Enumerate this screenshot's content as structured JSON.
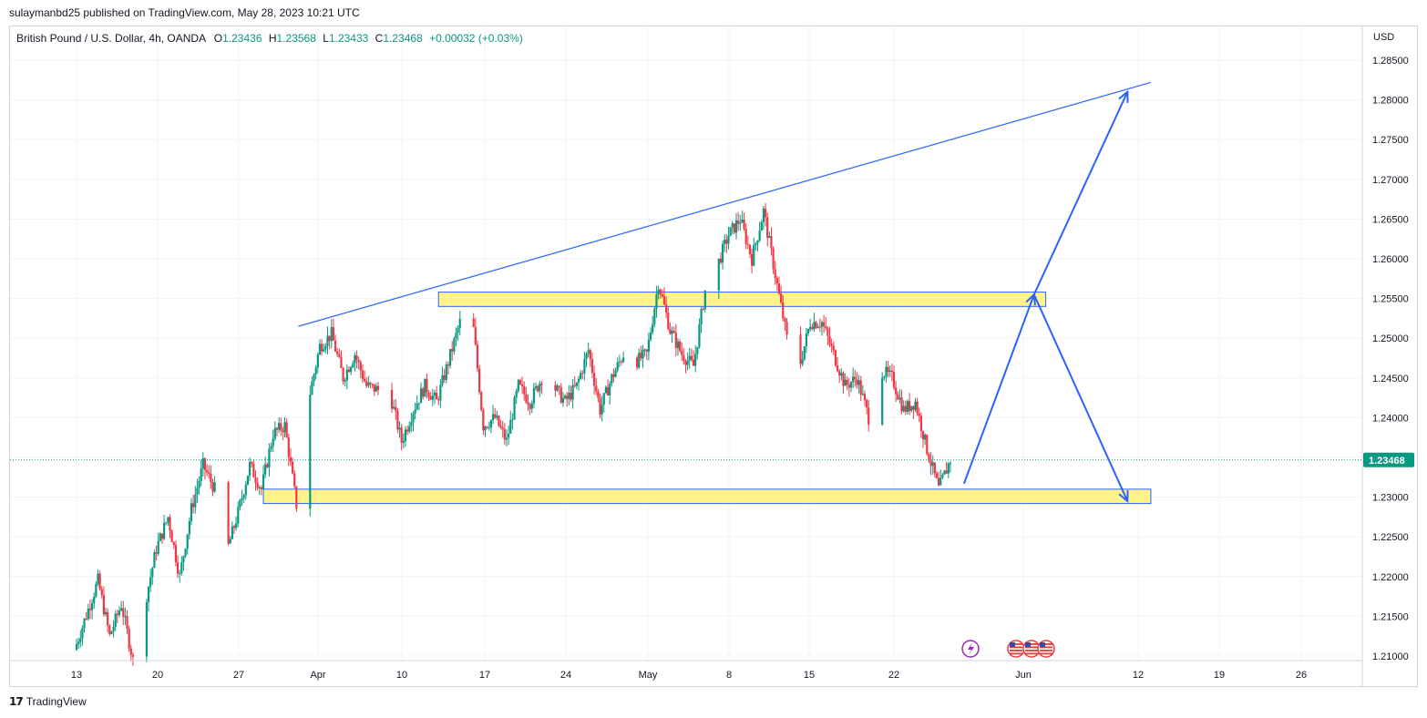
{
  "header": {
    "published_by": "sulaymanbd25 published on TradingView.com, May 28, 2023 10:21 UTC"
  },
  "legend": {
    "symbol": "British Pound / U.S. Dollar, 4h, OANDA",
    "o_label": "O",
    "o_value": "1.23436",
    "h_label": "H",
    "h_value": "1.23568",
    "l_label": "L",
    "l_value": "1.23433",
    "c_label": "C",
    "c_value": "1.23468",
    "change": "+0.00032 (+0.03%)"
  },
  "price_axis": {
    "currency": "USD",
    "ticks": [
      "1.28500",
      "1.28000",
      "1.27500",
      "1.27000",
      "1.26500",
      "1.26000",
      "1.25500",
      "1.25000",
      "1.24500",
      "1.24000",
      "1.23500",
      "1.23000",
      "1.22500",
      "1.22000",
      "1.21500",
      "1.21000"
    ],
    "last_price": "1.23468"
  },
  "time_axis": {
    "labels": [
      "13",
      "20",
      "27",
      "Apr",
      "10",
      "17",
      "24",
      "May",
      "8",
      "15",
      "22",
      "Jun",
      "12",
      "19",
      "26"
    ]
  },
  "footer": {
    "brand": "TradingView"
  },
  "colors": {
    "up": "#089981",
    "down": "#f23645",
    "trendline": "#2962ff",
    "zone_fill": "#fff176",
    "zone_border": "#2962ff",
    "last_price_bg": "#089981"
  },
  "chart_data": {
    "type": "candlestick",
    "symbol": "GBPUSD",
    "timeframe": "4h",
    "ylim": [
      1.2095,
      1.2875
    ],
    "x_range": [
      "2023-03-13",
      "2023-07-02"
    ],
    "price_points": [
      {
        "date": "2023-03-13",
        "price": 1.2108
      },
      {
        "date": "2023-03-15",
        "price": 1.2195
      },
      {
        "date": "2023-03-16",
        "price": 1.2125
      },
      {
        "date": "2023-03-17",
        "price": 1.2165
      },
      {
        "date": "2023-03-18",
        "price": 1.2095
      },
      {
        "date": "2023-03-20",
        "price": 1.2235
      },
      {
        "date": "2023-03-21",
        "price": 1.2275
      },
      {
        "date": "2023-03-22",
        "price": 1.22
      },
      {
        "date": "2023-03-23",
        "price": 1.2285
      },
      {
        "date": "2023-03-24",
        "price": 1.234
      },
      {
        "date": "2023-03-25",
        "price": 1.231
      },
      {
        "date": "2023-03-26",
        "price": 1.223
      },
      {
        "date": "2023-03-27",
        "price": 1.228
      },
      {
        "date": "2023-03-28",
        "price": 1.234
      },
      {
        "date": "2023-03-29",
        "price": 1.231
      },
      {
        "date": "2023-03-30",
        "price": 1.238
      },
      {
        "date": "2023-03-31",
        "price": 1.239
      },
      {
        "date": "2023-04-01",
        "price": 1.229
      },
      {
        "date": "2023-04-02",
        "price": 1.242
      },
      {
        "date": "2023-04-03",
        "price": 1.249
      },
      {
        "date": "2023-04-04",
        "price": 1.2505
      },
      {
        "date": "2023-04-05",
        "price": 1.245
      },
      {
        "date": "2023-04-06",
        "price": 1.248
      },
      {
        "date": "2023-04-07",
        "price": 1.244
      },
      {
        "date": "2023-04-09",
        "price": 1.243
      },
      {
        "date": "2023-04-10",
        "price": 1.237
      },
      {
        "date": "2023-04-11",
        "price": 1.241
      },
      {
        "date": "2023-04-12",
        "price": 1.244
      },
      {
        "date": "2023-04-13",
        "price": 1.242
      },
      {
        "date": "2023-04-14",
        "price": 1.247
      },
      {
        "date": "2023-04-15",
        "price": 1.252
      },
      {
        "date": "2023-04-16",
        "price": 1.2535
      },
      {
        "date": "2023-04-17",
        "price": 1.239
      },
      {
        "date": "2023-04-18",
        "price": 1.24
      },
      {
        "date": "2023-04-19",
        "price": 1.237
      },
      {
        "date": "2023-04-20",
        "price": 1.244
      },
      {
        "date": "2023-04-21",
        "price": 1.242
      },
      {
        "date": "2023-04-22",
        "price": 1.245
      },
      {
        "date": "2023-04-23",
        "price": 1.244
      },
      {
        "date": "2023-04-24",
        "price": 1.242
      },
      {
        "date": "2023-04-25",
        "price": 1.244
      },
      {
        "date": "2023-04-26",
        "price": 1.2485
      },
      {
        "date": "2023-04-27",
        "price": 1.241
      },
      {
        "date": "2023-04-28",
        "price": 1.245
      },
      {
        "date": "2023-04-29",
        "price": 1.248
      },
      {
        "date": "2023-04-30",
        "price": 1.247
      },
      {
        "date": "2023-05-01",
        "price": 1.248
      },
      {
        "date": "2023-05-02",
        "price": 1.257
      },
      {
        "date": "2023-05-03",
        "price": 1.251
      },
      {
        "date": "2023-05-04",
        "price": 1.248
      },
      {
        "date": "2023-05-05",
        "price": 1.2465
      },
      {
        "date": "2023-05-06",
        "price": 1.256
      },
      {
        "date": "2023-05-07",
        "price": 1.259
      },
      {
        "date": "2023-05-08",
        "price": 1.263
      },
      {
        "date": "2023-05-09",
        "price": 1.265
      },
      {
        "date": "2023-05-10",
        "price": 1.26
      },
      {
        "date": "2023-05-11",
        "price": 1.266
      },
      {
        "date": "2023-05-12",
        "price": 1.258
      },
      {
        "date": "2023-05-13",
        "price": 1.25
      },
      {
        "date": "2023-05-14",
        "price": 1.246
      },
      {
        "date": "2023-05-15",
        "price": 1.252
      },
      {
        "date": "2023-05-16",
        "price": 1.252
      },
      {
        "date": "2023-05-17",
        "price": 1.248
      },
      {
        "date": "2023-05-18",
        "price": 1.244
      },
      {
        "date": "2023-05-19",
        "price": 1.245
      },
      {
        "date": "2023-05-20",
        "price": 1.24
      },
      {
        "date": "2023-05-21",
        "price": 1.246
      },
      {
        "date": "2023-05-22",
        "price": 1.245
      },
      {
        "date": "2023-05-23",
        "price": 1.241
      },
      {
        "date": "2023-05-24",
        "price": 1.242
      },
      {
        "date": "2023-05-25",
        "price": 1.236
      },
      {
        "date": "2023-05-26",
        "price": 1.231
      },
      {
        "date": "2023-05-27",
        "price": 1.2347
      }
    ],
    "trendline": {
      "start": {
        "date": "2023-04-01",
        "price": 1.2515
      },
      "end": {
        "date": "2023-06-13",
        "price": 1.2822
      }
    },
    "zones": [
      {
        "name": "resistance",
        "from": "2023-04-13",
        "to": "2023-06-04",
        "top": 1.2558,
        "bottom": 1.254
      },
      {
        "name": "support",
        "from": "2023-03-29",
        "to": "2023-06-13",
        "top": 1.231,
        "bottom": 1.2292
      }
    ],
    "projection_path": [
      {
        "date": "2023-05-28",
        "price": 1.2317
      },
      {
        "date": "2023-06-03",
        "price": 1.2555
      },
      {
        "date": "2023-06-11",
        "price": 1.2295
      }
    ],
    "projection_up_arrow": [
      {
        "date": "2023-06-03",
        "price": 1.2555
      },
      {
        "date": "2023-06-11",
        "price": 1.281
      }
    ]
  }
}
